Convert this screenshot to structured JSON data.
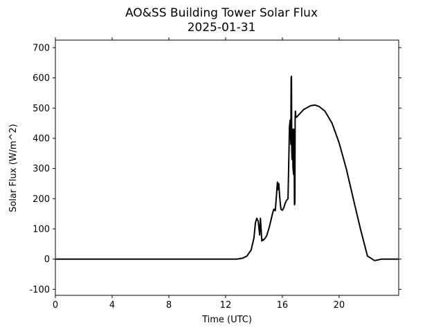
{
  "chart_data": {
    "type": "line",
    "title": "AO&SS Building Tower Solar Flux",
    "subtitle": "2025-01-31",
    "xlabel": "Time (UTC)",
    "ylabel": "Solar Flux (W/m^2)",
    "xlim": [
      0,
      24.2
    ],
    "ylim": [
      -120,
      725
    ],
    "xticks": [
      0,
      4,
      8,
      12,
      16,
      20
    ],
    "yticks": [
      -100,
      0,
      100,
      200,
      300,
      400,
      500,
      600,
      700
    ],
    "grid": false,
    "series": [
      {
        "color": "#000000",
        "x": [
          0,
          12.0,
          12.8,
          13.2,
          13.5,
          13.8,
          14.0,
          14.1,
          14.2,
          14.3,
          14.4,
          14.45,
          14.5,
          14.55,
          14.6,
          14.65,
          14.7,
          14.8,
          14.9,
          15.1,
          15.3,
          15.4,
          15.5,
          15.6,
          15.65,
          15.7,
          15.75,
          15.8,
          15.85,
          15.9,
          16.0,
          16.1,
          16.2,
          16.3,
          16.4,
          16.5,
          16.55,
          16.6,
          16.62,
          16.64,
          16.66,
          16.68,
          16.7,
          16.72,
          16.75,
          16.8,
          16.82,
          16.85,
          16.88,
          16.9,
          16.92,
          16.95,
          17.0,
          17.2,
          17.5,
          18.0,
          18.3,
          18.6,
          19.0,
          19.5,
          20.0,
          20.5,
          21.0,
          21.5,
          22.0,
          22.5,
          23.0,
          23.2,
          23.5,
          24.2
        ],
        "y": [
          0,
          0,
          0,
          3,
          10,
          30,
          70,
          120,
          135,
          125,
          80,
          135,
          100,
          60,
          65,
          62,
          65,
          70,
          78,
          110,
          150,
          165,
          160,
          220,
          255,
          230,
          250,
          215,
          185,
          165,
          162,
          170,
          185,
          195,
          200,
          440,
          460,
          380,
          600,
          605,
          360,
          330,
          420,
          430,
          300,
          280,
          430,
          180,
          185,
          470,
          490,
          470,
          470,
          480,
          495,
          508,
          510,
          505,
          490,
          450,
          385,
          300,
          200,
          100,
          10,
          -5,
          0,
          0,
          0,
          0
        ]
      }
    ]
  }
}
